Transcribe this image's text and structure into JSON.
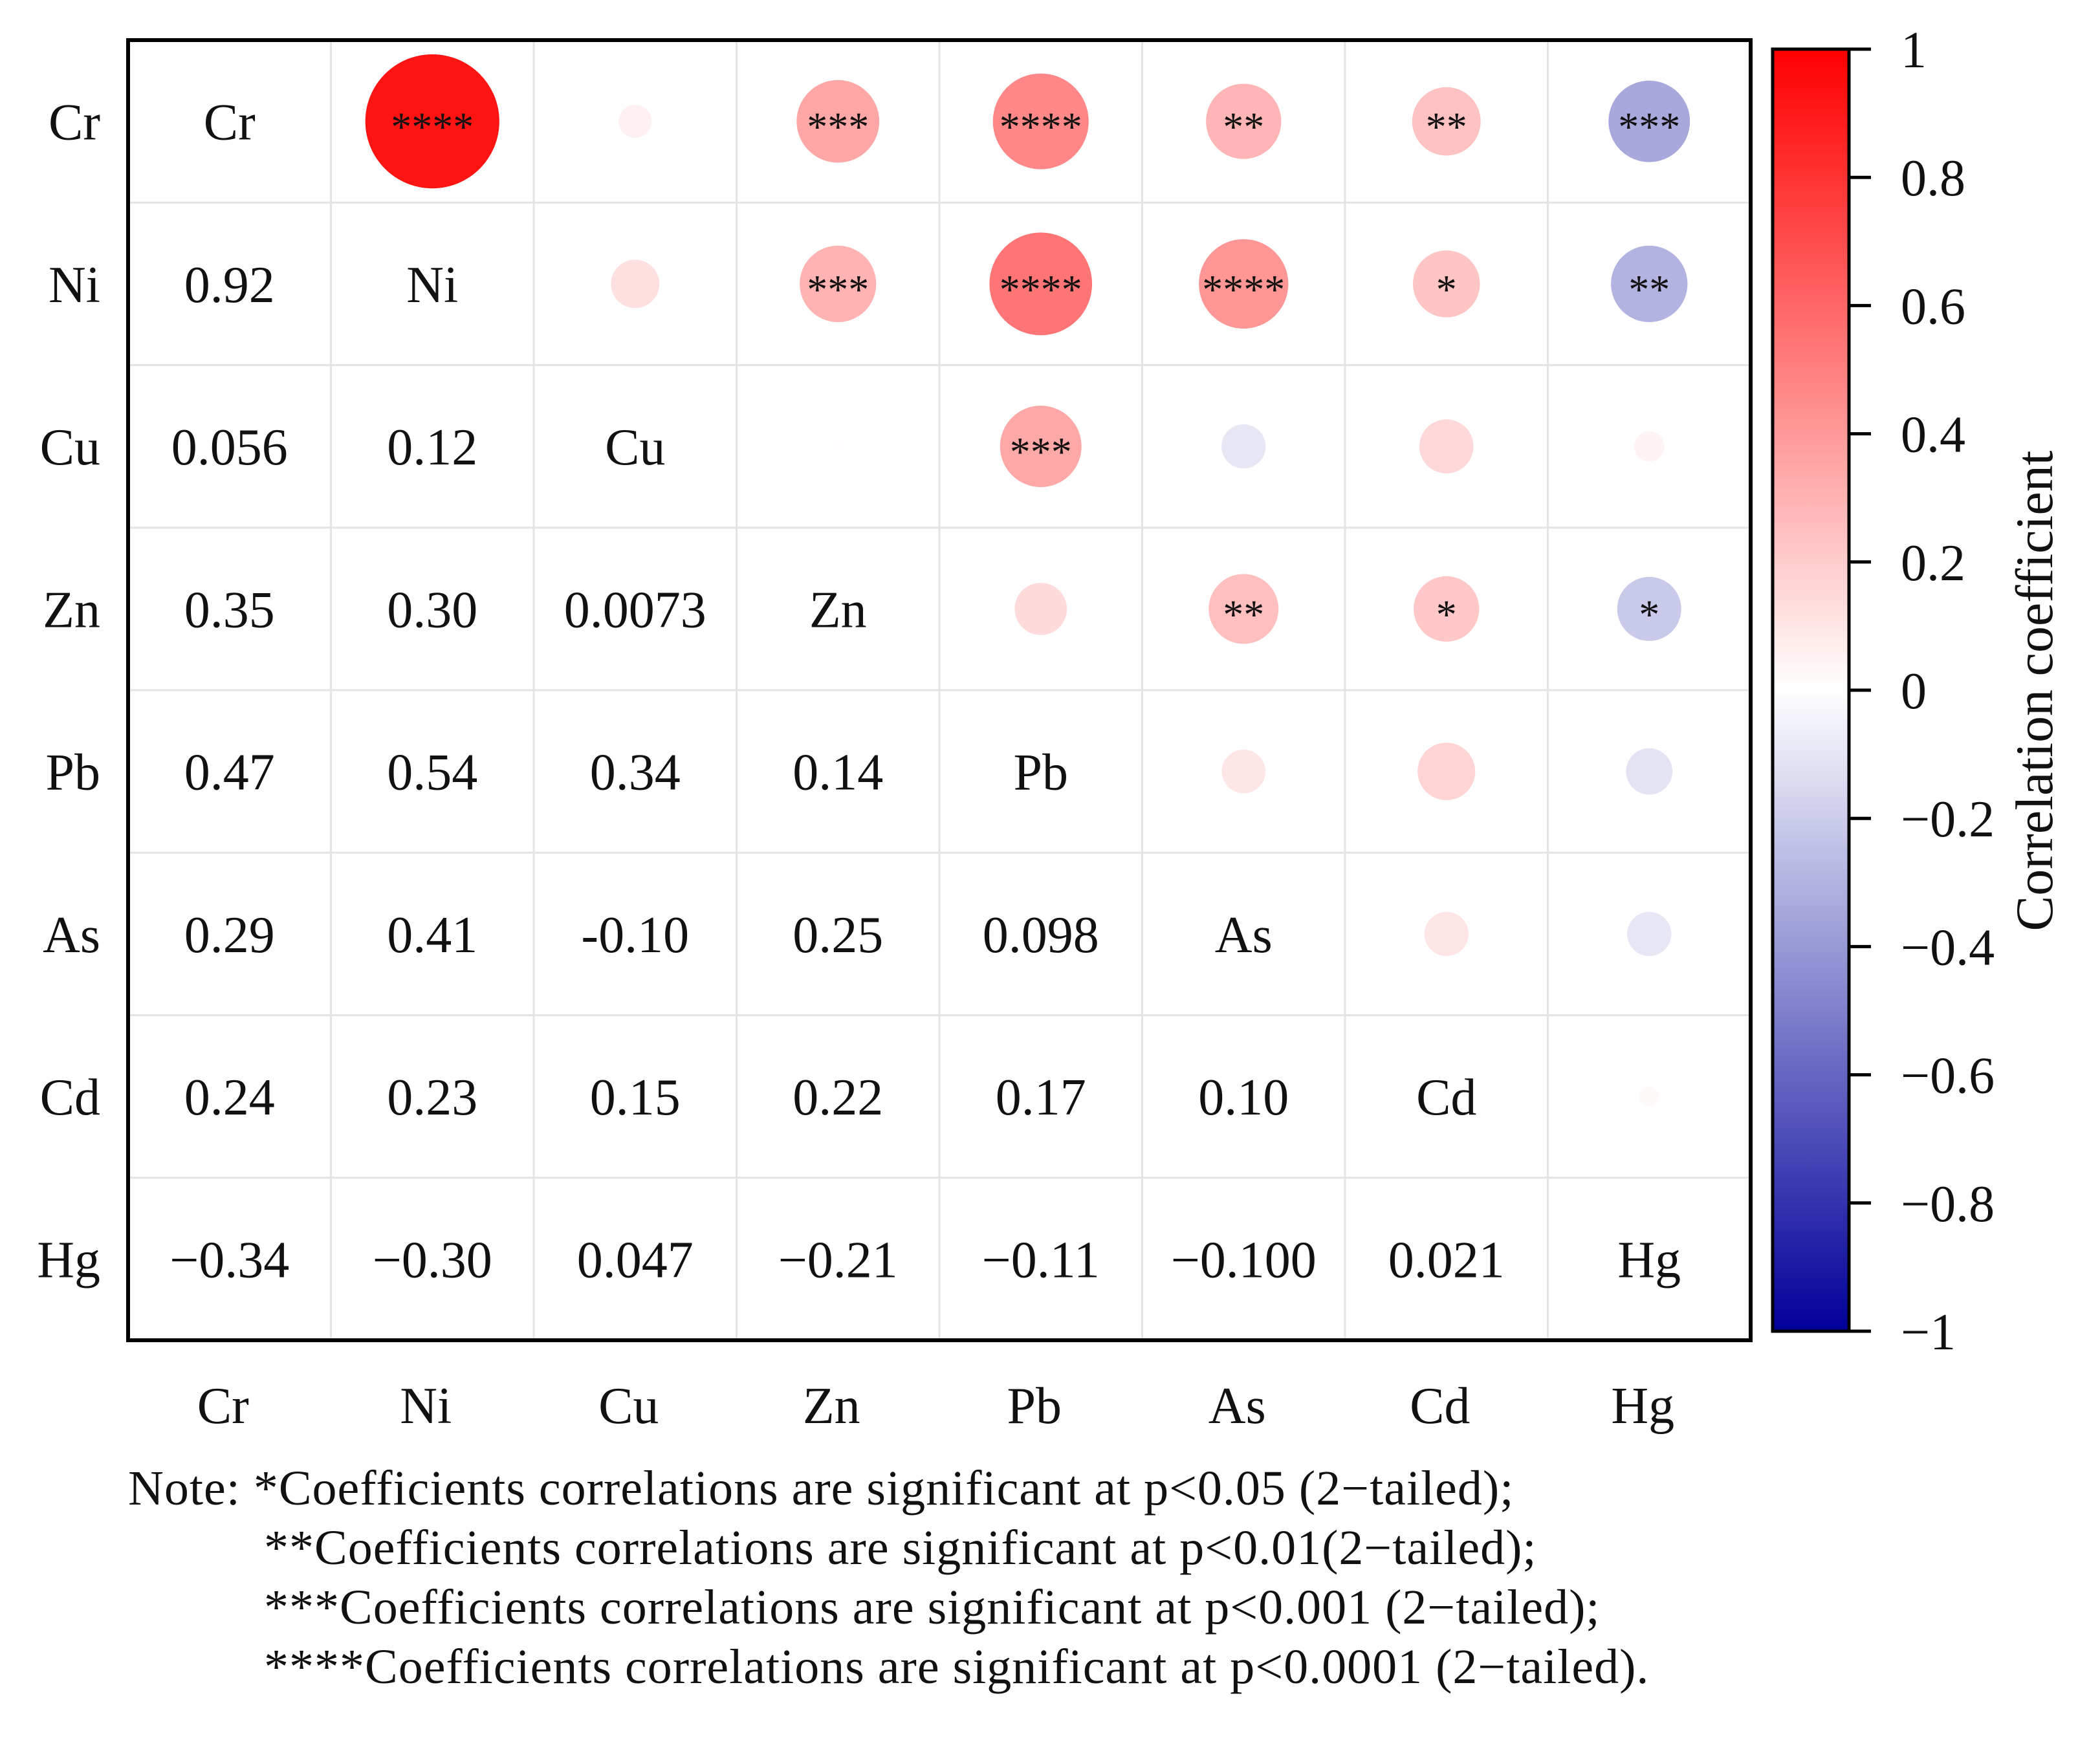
{
  "chart_data": {
    "type": "correlation-matrix",
    "variables": [
      "Cr",
      "Ni",
      "Cu",
      "Zn",
      "Pb",
      "As",
      "Cd",
      "Hg"
    ],
    "lower_triangle_labels": [
      [],
      [
        "0.92"
      ],
      [
        "0.056",
        "0.12"
      ],
      [
        "0.35",
        "0.30",
        "0.0073"
      ],
      [
        "0.47",
        "0.54",
        "0.34",
        "0.14"
      ],
      [
        "0.29",
        "0.41",
        "-0.10",
        "0.25",
        "0.098"
      ],
      [
        "0.24",
        "0.23",
        "0.15",
        "0.22",
        "0.17",
        "0.10"
      ],
      [
        "−0.34",
        "−0.30",
        "0.047",
        "−0.21",
        "−0.11",
        "−0.100",
        "0.021"
      ]
    ],
    "correlations": [
      [
        1,
        0.92,
        0.056,
        0.35,
        0.47,
        0.29,
        0.24,
        -0.34
      ],
      [
        0.92,
        1,
        0.12,
        0.3,
        0.54,
        0.41,
        0.23,
        -0.3
      ],
      [
        0.056,
        0.12,
        1,
        0.0073,
        0.34,
        -0.1,
        0.15,
        0.047
      ],
      [
        0.35,
        0.3,
        0.0073,
        1,
        0.14,
        0.25,
        0.22,
        -0.21
      ],
      [
        0.47,
        0.54,
        0.34,
        0.14,
        1,
        0.098,
        0.17,
        -0.11
      ],
      [
        0.29,
        0.41,
        -0.1,
        0.25,
        0.098,
        1,
        0.1,
        -0.1
      ],
      [
        0.24,
        0.23,
        0.15,
        0.22,
        0.17,
        0.1,
        1,
        0.021
      ],
      [
        -0.34,
        -0.3,
        0.047,
        -0.21,
        -0.11,
        -0.1,
        0.021,
        1
      ]
    ],
    "significance": [
      [
        "",
        "****",
        "",
        "***",
        "****",
        "**",
        "**",
        "***"
      ],
      [
        "",
        "",
        "",
        "***",
        "****",
        "****",
        "*",
        "**"
      ],
      [
        "",
        "",
        "",
        "",
        "***",
        "",
        "",
        ""
      ],
      [
        "",
        "",
        "",
        "",
        "",
        "**",
        "*",
        "*"
      ],
      [
        "",
        "",
        "",
        "",
        "",
        "",
        "",
        ""
      ],
      [
        "",
        "",
        "",
        "",
        "",
        "",
        "",
        ""
      ],
      [
        "",
        "",
        "",
        "",
        "",
        "",
        "",
        ""
      ],
      [
        "",
        "",
        "",
        "",
        "",
        "",
        "",
        ""
      ]
    ],
    "colorbar": {
      "label": "Correlation coefficient",
      "range": [
        -1,
        1
      ],
      "tick_values": [
        1,
        0.8,
        0.6,
        0.4,
        0.2,
        0,
        -0.2,
        -0.4,
        -0.6,
        -0.8,
        -1
      ],
      "tick_labels": [
        "1",
        "0.8",
        "0.6",
        "0.4",
        "0.2",
        "0",
        "−0.2",
        "−0.4",
        "−0.6",
        "−0.8",
        "−1"
      ],
      "colors": {
        "high": "#ff0000",
        "mid": "#ffffff",
        "low": "#00009a"
      }
    }
  },
  "notes": [
    "Note: *Coefficients correlations are significant at p<0.05 (2−tailed);",
    "**Coefficients correlations are significant at p<0.01(2−tailed);",
    "***Coefficients correlations are significant at p<0.001 (2−tailed);",
    "****Coefficients correlations are significant at p<0.0001 (2−tailed)."
  ]
}
